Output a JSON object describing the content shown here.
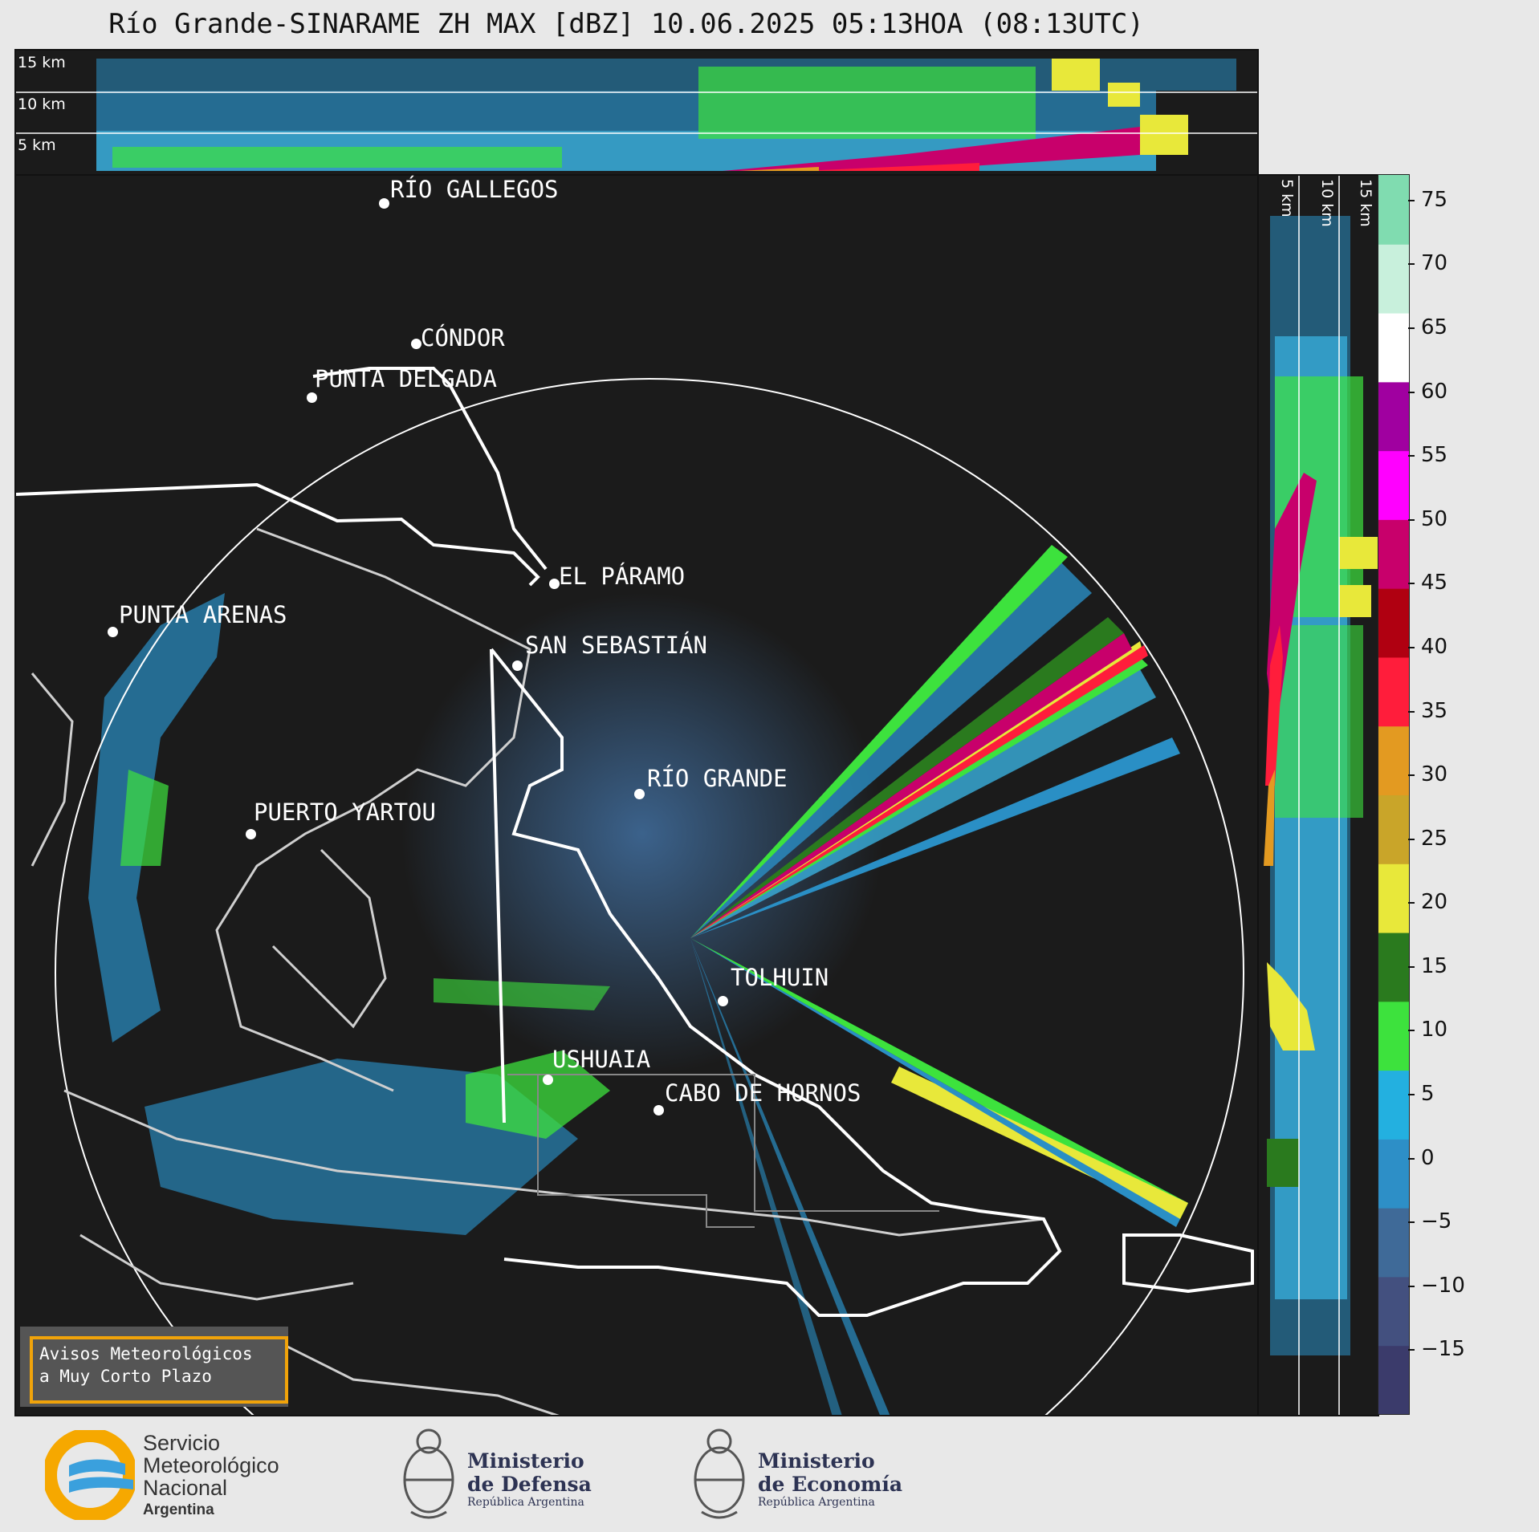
{
  "title": "Río Grande-SINARAME ZH MAX [dBZ] 10.06.2025 05:13HOA (08:13UTC)",
  "top_panel": {
    "height_labels": [
      "15 km",
      "10 km",
      "5 km"
    ]
  },
  "side_panel": {
    "height_labels": [
      "5 km",
      "10 km",
      "15 km"
    ]
  },
  "cities": [
    {
      "name": "RÍO GALLEGOS"
    },
    {
      "name": "CÓNDOR"
    },
    {
      "name": "PUNTA DELGADA"
    },
    {
      "name": "EL PÁRAMO"
    },
    {
      "name": "PUNTA ARENAS"
    },
    {
      "name": "SAN SEBASTIÁN"
    },
    {
      "name": "RÍO GRANDE"
    },
    {
      "name": "PUERTO YARTOU"
    },
    {
      "name": "TOLHUIN"
    },
    {
      "name": "USHUAIA"
    },
    {
      "name": "CABO DE HORNOS"
    }
  ],
  "colorbar": {
    "unit": "dBZ",
    "ticks": [
      "75",
      "70",
      "65",
      "60",
      "55",
      "50",
      "45",
      "40",
      "35",
      "30",
      "25",
      "20",
      "15",
      "10",
      "5",
      "0",
      "−5",
      "−10",
      "−15"
    ],
    "range": [
      -20,
      77
    ],
    "colors": [
      "#3b3b6b",
      "#43507f",
      "#3f6a98",
      "#2d8fc7",
      "#23b0e0",
      "#3de23d",
      "#2a7a1e",
      "#e8e83a",
      "#c9a529",
      "#e39a21",
      "#ff1d3b",
      "#b00011",
      "#c8006b",
      "#ff00ff",
      "#a000a0",
      "#ffffff",
      "#c8f0dc",
      "#80dcb0"
    ]
  },
  "avisos": {
    "line1": "Avisos Meteorológicos",
    "line2": "a Muy Corto Plazo"
  },
  "footer": {
    "smn_line1": "Servicio",
    "smn_line2": "Meteorológico",
    "smn_line3": "Nacional",
    "smn_line4": "Argentina",
    "defensa_line1": "Ministerio",
    "defensa_line2": "de Defensa",
    "defensa_line3": "República Argentina",
    "economia_line1": "Ministerio",
    "economia_line2": "de Economía",
    "economia_line3": "República Argentina"
  }
}
